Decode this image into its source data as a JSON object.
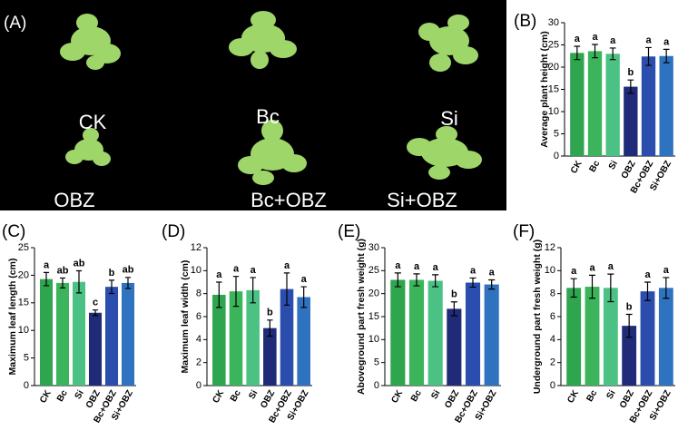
{
  "panel_a": {
    "label": "(A)",
    "plants": [
      "CK",
      "Bc",
      "Si",
      "OBZ",
      "Bc+OBZ",
      "Si+OBZ"
    ]
  },
  "chart_data": [
    {
      "type": "bar",
      "panel": "(B)",
      "y_label": "Average plant height (cm)",
      "categories": [
        "CK",
        "Bc",
        "Si",
        "OBZ",
        "Bc+OBZ",
        "Si+OBZ"
      ],
      "values": [
        23.2,
        23.6,
        23,
        15.6,
        22.4,
        22.5
      ],
      "errors": [
        1.5,
        1.5,
        1.3,
        1.5,
        2,
        1.5
      ],
      "letters": [
        "a",
        "a",
        "a",
        "b",
        "a",
        "a"
      ],
      "colors": [
        "#2ea54e",
        "#3cb45c",
        "#4cc184",
        "#1f2a78",
        "#2b4eae",
        "#2f72bf"
      ],
      "ylim": [
        0,
        30
      ],
      "yticks": [
        0,
        5,
        10,
        15,
        20,
        25,
        30
      ]
    },
    {
      "type": "bar",
      "panel": "(C)",
      "y_label": "Maximum leaf length (cm)",
      "categories": [
        "CK",
        "Bc",
        "Si",
        "OBZ",
        "Bc+OBZ",
        "Si+OBZ"
      ],
      "values": [
        19.3,
        18.6,
        18.8,
        13.2,
        17.9,
        18.6
      ],
      "errors": [
        1.2,
        0.9,
        2,
        0.5,
        1.2,
        1
      ],
      "letters": [
        "a",
        "ab",
        "ab",
        "c",
        "b",
        "ab"
      ],
      "colors": [
        "#2ea54e",
        "#3cb45c",
        "#4cc184",
        "#1f2a78",
        "#2b4eae",
        "#2f72bf"
      ],
      "ylim": [
        0,
        25
      ],
      "yticks": [
        0,
        5,
        10,
        15,
        20,
        25
      ]
    },
    {
      "type": "bar",
      "panel": "(D)",
      "y_label": "Maximum leaf width (cm)",
      "categories": [
        "CK",
        "Bc",
        "Si",
        "OBZ",
        "Bc+OBZ",
        "Si+OBZ"
      ],
      "values": [
        7.9,
        8.2,
        8.3,
        5,
        8.4,
        7.7
      ],
      "errors": [
        1.1,
        1.3,
        1.1,
        0.7,
        1.4,
        0.9
      ],
      "letters": [
        "a",
        "a",
        "a",
        "b",
        "a",
        "a"
      ],
      "colors": [
        "#2ea54e",
        "#3cb45c",
        "#4cc184",
        "#1f2a78",
        "#2b4eae",
        "#2f72bf"
      ],
      "ylim": [
        0,
        12
      ],
      "yticks": [
        0,
        2,
        4,
        6,
        8,
        10,
        12
      ]
    },
    {
      "type": "bar",
      "panel": "(E)",
      "y_label": "Aboveground part fresh weight (g)",
      "categories": [
        "CK",
        "Bc",
        "Si",
        "OBZ",
        "Bc+OBZ",
        "Si+OBZ"
      ],
      "values": [
        23,
        23,
        22.8,
        16.7,
        22.4,
        22
      ],
      "errors": [
        1.5,
        1.3,
        1.3,
        1.5,
        1,
        1
      ],
      "letters": [
        "a",
        "a",
        "a",
        "b",
        "a",
        "a"
      ],
      "colors": [
        "#2ea54e",
        "#3cb45c",
        "#4cc184",
        "#1f2a78",
        "#2b4eae",
        "#2f72bf"
      ],
      "ylim": [
        0,
        30
      ],
      "yticks": [
        0,
        5,
        10,
        15,
        20,
        25,
        30
      ]
    },
    {
      "type": "bar",
      "panel": "(F)",
      "y_label": "Underground part fresh weight (g)",
      "categories": [
        "CK",
        "Bc",
        "Si",
        "OBZ",
        "Bc+OBZ",
        "Si+OBZ"
      ],
      "values": [
        8.5,
        8.6,
        8.5,
        5.2,
        8.2,
        8.5
      ],
      "errors": [
        0.8,
        1,
        1.2,
        1,
        0.8,
        0.9
      ],
      "letters": [
        "a",
        "a",
        "a",
        "b",
        "a",
        "a"
      ],
      "colors": [
        "#2ea54e",
        "#3cb45c",
        "#4cc184",
        "#1f2a78",
        "#2b4eae",
        "#2f72bf"
      ],
      "ylim": [
        0,
        12
      ],
      "yticks": [
        0,
        2,
        4,
        6,
        8,
        10,
        12
      ]
    }
  ]
}
